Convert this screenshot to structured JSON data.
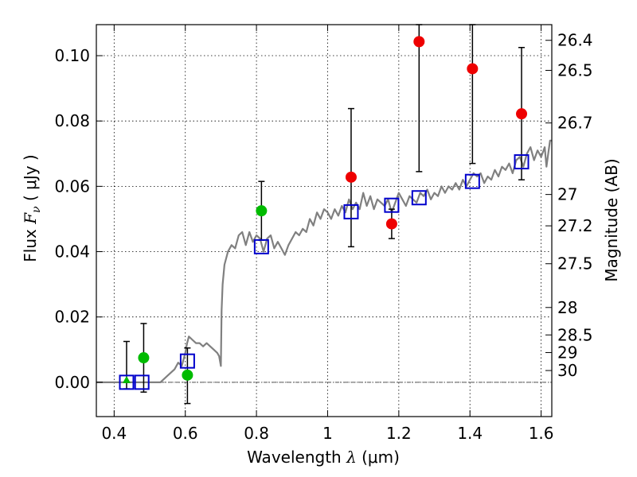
{
  "chart_data": {
    "type": "scatter",
    "xlabel": "Wavelength  λ (μm)",
    "ylabel": "Flux  F_ν  ( μJy )",
    "ylabel_parts": {
      "prefix": "Flux  ",
      "symbol": "F",
      "subscript": "ν",
      "unit": "  ( μJy )"
    },
    "xlabel_parts": {
      "prefix": "Wavelength  ",
      "symbol": "λ",
      "unit": " (μm)"
    },
    "y2label": "Magnitude (AB)",
    "xlim": [
      0.35,
      1.63
    ],
    "ylim": [
      -0.0105,
      0.1095
    ],
    "grid": true,
    "x_ticks": [
      {
        "value": 0.4,
        "label": "0.4"
      },
      {
        "value": 0.6,
        "label": "0.6"
      },
      {
        "value": 0.8,
        "label": "0.8"
      },
      {
        "value": 1.0,
        "label": "1"
      },
      {
        "value": 1.2,
        "label": "1.2"
      },
      {
        "value": 1.4,
        "label": "1.4"
      },
      {
        "value": 1.6,
        "label": "1.6"
      }
    ],
    "y_ticks": [
      {
        "value": 0.0,
        "label": "0.00"
      },
      {
        "value": 0.02,
        "label": "0.02"
      },
      {
        "value": 0.04,
        "label": "0.04"
      },
      {
        "value": 0.06,
        "label": "0.06"
      },
      {
        "value": 0.08,
        "label": "0.08"
      },
      {
        "value": 0.1,
        "label": "0.10"
      }
    ],
    "mag_ticks": [
      {
        "flux": 0.1047,
        "label": "26.4"
      },
      {
        "flux": 0.0955,
        "label": "26.5"
      },
      {
        "flux": 0.0794,
        "label": "26.7"
      },
      {
        "flux": 0.0575,
        "label": "27"
      },
      {
        "flux": 0.0479,
        "label": "27.2"
      },
      {
        "flux": 0.0363,
        "label": "27.5"
      },
      {
        "flux": 0.0229,
        "label": "28"
      },
      {
        "flux": 0.0145,
        "label": "28.5"
      },
      {
        "flux": 0.0091,
        "label": "29"
      },
      {
        "flux": 0.0036,
        "label": "30"
      }
    ],
    "series": [
      {
        "name": "model spectrum",
        "kind": "line",
        "color": "#808080",
        "points": [
          [
            0.35,
            0.0
          ],
          [
            0.5,
            0.0
          ],
          [
            0.53,
            0.0
          ],
          [
            0.55,
            0.002
          ],
          [
            0.57,
            0.004
          ],
          [
            0.58,
            0.006
          ],
          [
            0.59,
            0.005
          ],
          [
            0.6,
            0.009
          ],
          [
            0.605,
            0.012
          ],
          [
            0.61,
            0.014
          ],
          [
            0.62,
            0.013
          ],
          [
            0.63,
            0.012
          ],
          [
            0.64,
            0.012
          ],
          [
            0.65,
            0.011
          ],
          [
            0.66,
            0.012
          ],
          [
            0.67,
            0.011
          ],
          [
            0.68,
            0.01
          ],
          [
            0.69,
            0.009
          ],
          [
            0.695,
            0.008
          ],
          [
            0.7,
            0.005
          ],
          [
            0.702,
            0.022
          ],
          [
            0.705,
            0.03
          ],
          [
            0.71,
            0.036
          ],
          [
            0.72,
            0.04
          ],
          [
            0.73,
            0.042
          ],
          [
            0.74,
            0.041
          ],
          [
            0.75,
            0.045
          ],
          [
            0.76,
            0.046
          ],
          [
            0.77,
            0.042
          ],
          [
            0.78,
            0.046
          ],
          [
            0.79,
            0.043
          ],
          [
            0.8,
            0.045
          ],
          [
            0.81,
            0.044
          ],
          [
            0.82,
            0.04
          ],
          [
            0.83,
            0.044
          ],
          [
            0.84,
            0.045
          ],
          [
            0.85,
            0.041
          ],
          [
            0.86,
            0.043
          ],
          [
            0.87,
            0.041
          ],
          [
            0.88,
            0.039
          ],
          [
            0.89,
            0.042
          ],
          [
            0.9,
            0.044
          ],
          [
            0.91,
            0.046
          ],
          [
            0.92,
            0.045
          ],
          [
            0.93,
            0.047
          ],
          [
            0.94,
            0.046
          ],
          [
            0.95,
            0.05
          ],
          [
            0.96,
            0.048
          ],
          [
            0.97,
            0.052
          ],
          [
            0.98,
            0.05
          ],
          [
            0.99,
            0.053
          ],
          [
            1.0,
            0.052
          ],
          [
            1.01,
            0.05
          ],
          [
            1.02,
            0.053
          ],
          [
            1.03,
            0.051
          ],
          [
            1.04,
            0.054
          ],
          [
            1.05,
            0.052
          ],
          [
            1.06,
            0.056
          ],
          [
            1.07,
            0.053
          ],
          [
            1.08,
            0.055
          ],
          [
            1.09,
            0.053
          ],
          [
            1.1,
            0.058
          ],
          [
            1.11,
            0.054
          ],
          [
            1.12,
            0.057
          ],
          [
            1.13,
            0.053
          ],
          [
            1.14,
            0.056
          ],
          [
            1.15,
            0.055
          ],
          [
            1.16,
            0.054
          ],
          [
            1.17,
            0.056
          ],
          [
            1.18,
            0.052
          ],
          [
            1.19,
            0.055
          ],
          [
            1.2,
            0.058
          ],
          [
            1.21,
            0.056
          ],
          [
            1.22,
            0.054
          ],
          [
            1.23,
            0.057
          ],
          [
            1.24,
            0.056
          ],
          [
            1.25,
            0.055
          ],
          [
            1.26,
            0.058
          ],
          [
            1.27,
            0.057
          ],
          [
            1.28,
            0.059
          ],
          [
            1.29,
            0.056
          ],
          [
            1.3,
            0.058
          ],
          [
            1.31,
            0.057
          ],
          [
            1.32,
            0.06
          ],
          [
            1.33,
            0.058
          ],
          [
            1.34,
            0.06
          ],
          [
            1.35,
            0.059
          ],
          [
            1.36,
            0.061
          ],
          [
            1.37,
            0.059
          ],
          [
            1.38,
            0.062
          ],
          [
            1.39,
            0.06
          ],
          [
            1.4,
            0.062
          ],
          [
            1.41,
            0.064
          ],
          [
            1.42,
            0.063
          ],
          [
            1.43,
            0.064
          ],
          [
            1.44,
            0.061
          ],
          [
            1.45,
            0.063
          ],
          [
            1.46,
            0.062
          ],
          [
            1.47,
            0.065
          ],
          [
            1.48,
            0.063
          ],
          [
            1.49,
            0.066
          ],
          [
            1.5,
            0.065
          ],
          [
            1.51,
            0.067
          ],
          [
            1.52,
            0.064
          ],
          [
            1.53,
            0.068
          ],
          [
            1.54,
            0.069
          ],
          [
            1.55,
            0.066
          ],
          [
            1.56,
            0.07
          ],
          [
            1.57,
            0.072
          ],
          [
            1.58,
            0.068
          ],
          [
            1.59,
            0.071
          ],
          [
            1.6,
            0.069
          ],
          [
            1.61,
            0.072
          ],
          [
            1.615,
            0.066
          ],
          [
            1.62,
            0.07
          ],
          [
            1.625,
            0.074
          ],
          [
            1.63,
            0.074
          ]
        ]
      },
      {
        "name": "green photometry",
        "kind": "circle",
        "color": "#00bb00",
        "points": [
          {
            "x": 0.483,
            "y": 0.0075,
            "lo": -0.003,
            "hi": 0.018
          },
          {
            "x": 0.606,
            "y": 0.0022,
            "lo": -0.0065,
            "hi": 0.0105
          },
          {
            "x": 0.814,
            "y": 0.0525,
            "lo": 0.0435,
            "hi": 0.0615
          }
        ]
      },
      {
        "name": "green triangle",
        "kind": "triangle",
        "color": "#00bb00",
        "points": [
          {
            "x": 0.435,
            "y": 0.0,
            "lo": -0.002,
            "hi": 0.0125
          }
        ]
      },
      {
        "name": "red photometry",
        "kind": "circle",
        "color": "#ee0000",
        "points": [
          {
            "x": 1.066,
            "y": 0.0628,
            "lo": 0.0415,
            "hi": 0.0838
          },
          {
            "x": 1.18,
            "y": 0.0485,
            "lo": 0.044,
            "hi": 0.053
          },
          {
            "x": 1.257,
            "y": 0.1043,
            "lo": 0.0645,
            "hi": 0.1095
          },
          {
            "x": 1.407,
            "y": 0.096,
            "lo": 0.067,
            "hi": 0.1095
          },
          {
            "x": 1.545,
            "y": 0.0822,
            "lo": 0.062,
            "hi": 0.1025
          }
        ]
      },
      {
        "name": "model photometry",
        "kind": "square",
        "color": "#0000cc",
        "points": [
          {
            "x": 0.435,
            "y": 0.0
          },
          {
            "x": 0.478,
            "y": 0.0
          },
          {
            "x": 0.606,
            "y": 0.0065
          },
          {
            "x": 0.814,
            "y": 0.0415
          },
          {
            "x": 1.066,
            "y": 0.0522
          },
          {
            "x": 1.18,
            "y": 0.0542
          },
          {
            "x": 1.257,
            "y": 0.0565
          },
          {
            "x": 1.407,
            "y": 0.0615
          },
          {
            "x": 1.545,
            "y": 0.0675
          }
        ]
      }
    ]
  }
}
